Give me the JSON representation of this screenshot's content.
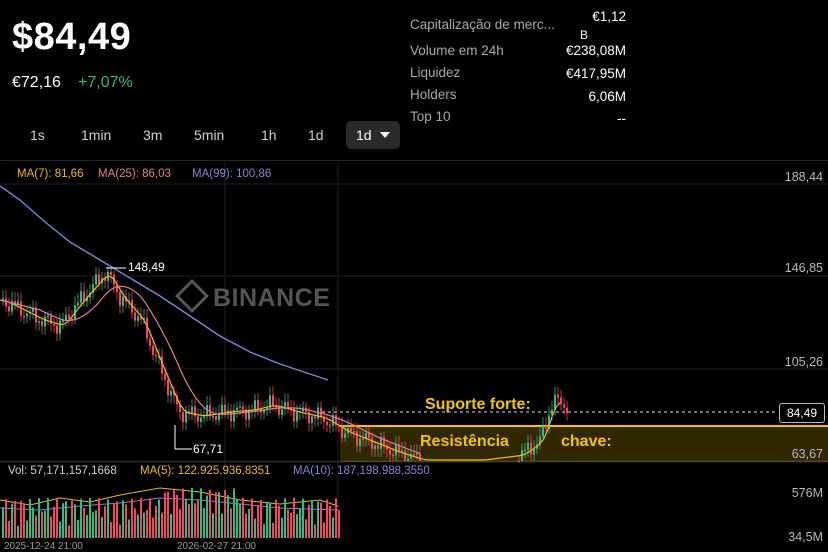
{
  "header": {
    "price": "$84,49",
    "price_eur": "€72,16",
    "change": "+7,07%"
  },
  "stats": [
    {
      "label": "Capitalização de merc...",
      "value": "€1,12",
      "value_extra": "B"
    },
    {
      "label": "Volume em 24h",
      "value": "€238,08M"
    },
    {
      "label": "Liquidez",
      "value": "€417,95M"
    },
    {
      "label": "Holders",
      "value": "6,06M"
    },
    {
      "label": "Top 10",
      "value": "--"
    }
  ],
  "timeframes": [
    "1s",
    "1min",
    "3m",
    "5min",
    "1h",
    "1d"
  ],
  "timeframe_selected": "1d",
  "watermark": "BINANCE",
  "indicators": {
    "ma7": "MA(7): 81,66",
    "ma25": "MA(25): 86,03",
    "ma99": "MA(99): 100,86",
    "vol": "Vol: 57,171,157,1668",
    "vma5": "MA(5): 122.925,936,8351",
    "vma10": "MA(10): 187,198.988,3550"
  },
  "price_axis": [
    "188,44",
    "146,85",
    "105,26",
    "63,67"
  ],
  "volume_axis": [
    "576M",
    "34,5M"
  ],
  "current_price_label": "84,49",
  "high_label": "148,49",
  "low_label": "67,71",
  "date_labels": [
    "2025-12-24 21:00",
    "2026-02-27 21:00"
  ],
  "annotations": {
    "support": "Suporte forte:",
    "resistance": "Resistência",
    "key": "chave:"
  },
  "colors": {
    "up": "#2ebd85",
    "down": "#f6465d",
    "ma7": "#f0b90b",
    "ma25": "#e27aa0",
    "ma99": "#8b7fd8",
    "annotation": "#f5c400"
  }
}
